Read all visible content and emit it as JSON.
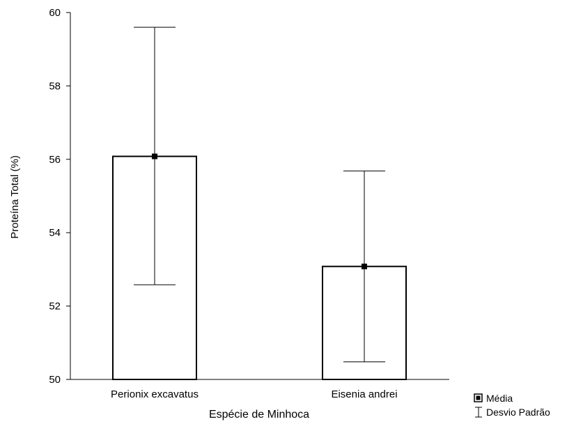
{
  "chart_data": {
    "type": "bar",
    "categories": [
      "Perionix excavatus",
      "Eisenia andrei"
    ],
    "values": [
      56.08,
      53.08
    ],
    "error_low": [
      52.58,
      50.48
    ],
    "error_high": [
      59.6,
      55.68
    ],
    "xlabel": "Espécie de Minhoca",
    "ylabel": "Proteína Total (%)",
    "ylim": [
      50,
      60
    ],
    "yticks": [
      50,
      52,
      54,
      56,
      58,
      60
    ],
    "grid": false,
    "legend": {
      "placement": "bottom-right",
      "entries": [
        {
          "symbol": "square",
          "label": "Média"
        },
        {
          "symbol": "error-bar",
          "label": "Desvio Padrão"
        }
      ]
    }
  }
}
